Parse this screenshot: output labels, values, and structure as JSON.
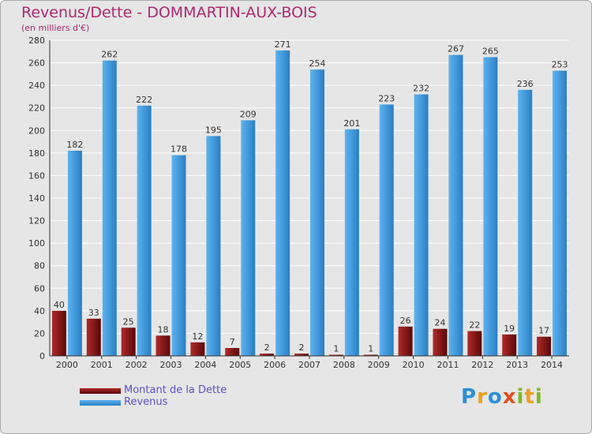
{
  "chart_data": {
    "type": "bar",
    "title": "Revenus/Dette - DOMMARTIN-AUX-BOIS",
    "subtitle": "(en milliers d'€)",
    "categories": [
      "2000",
      "2001",
      "2002",
      "2003",
      "2004",
      "2005",
      "2006",
      "2007",
      "2008",
      "2009",
      "2010",
      "2011",
      "2012",
      "2013",
      "2014"
    ],
    "series": [
      {
        "name": "Montant de la Dette",
        "color": "#7a1010",
        "values": [
          40,
          33,
          25,
          18,
          12,
          7,
          2,
          2,
          1,
          1,
          26,
          24,
          22,
          19,
          17
        ]
      },
      {
        "name": "Revenus",
        "color": "#3d9be0",
        "values": [
          182,
          262,
          222,
          178,
          195,
          209,
          271,
          254,
          201,
          223,
          232,
          267,
          265,
          236,
          253
        ]
      }
    ],
    "ylim": [
      0,
      280
    ],
    "yticks": [
      0,
      20,
      40,
      60,
      80,
      100,
      120,
      140,
      160,
      180,
      200,
      220,
      240,
      260,
      280
    ],
    "grid": true,
    "legend_position": "bottom-left"
  },
  "brand": {
    "name": "Proxiti",
    "letters": [
      "P",
      "r",
      "o",
      "x",
      "i",
      "t",
      "i"
    ],
    "colors": [
      "#2e8fd6",
      "#e8a020",
      "#2e8fd6",
      "#e05020",
      "#80b820",
      "#e8a020",
      "#80b820"
    ]
  }
}
